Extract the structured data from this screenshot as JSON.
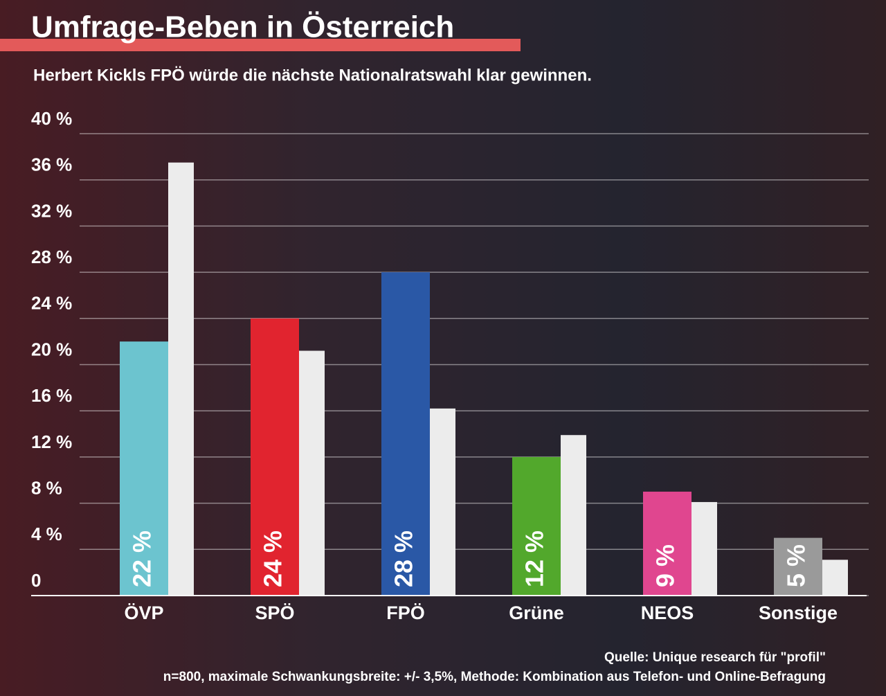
{
  "chart_data": {
    "type": "bar",
    "title": "Umfrage-Beben in Österreich",
    "subtitle": "Herbert Kickls FPÖ würde die nächste Nationalratswahl klar gewinnen.",
    "categories": [
      "ÖVP",
      "SPÖ",
      "FPÖ",
      "Grüne",
      "NEOS",
      "Sonstige"
    ],
    "series": [
      {
        "colors": [
          "#6cc4cf",
          "#e1242f",
          "#2a58a6",
          "#52a82c",
          "#e0468f",
          "#9a9a9a"
        ],
        "values": [
          22,
          24,
          28,
          12,
          9,
          5
        ],
        "value_labels": [
          "22 %",
          "24 %",
          "28 %",
          "12 %",
          "9 %",
          "5 %"
        ]
      },
      {
        "color": "#ececec",
        "values": [
          37.5,
          21.2,
          16.2,
          13.9,
          8.1,
          3.1
        ]
      }
    ],
    "ylim": [
      0,
      40
    ],
    "yticks": [
      0,
      {
        "value": 4,
        "label": "4 %"
      },
      {
        "value": 8,
        "label": "8 %"
      },
      {
        "value": 12,
        "label": "12 %"
      },
      {
        "value": 16,
        "label": "16 %"
      },
      {
        "value": 20,
        "label": "20 %"
      },
      {
        "value": 24,
        "label": "24 %"
      },
      {
        "value": 28,
        "label": "28 %"
      },
      {
        "value": 32,
        "label": "32 %"
      },
      {
        "value": 36,
        "label": "36 %"
      },
      {
        "value": 40,
        "label": "40 %"
      }
    ],
    "grid": true,
    "source": "Quelle: Unique research für \"profil\"",
    "note": "n=800, maximale Schwankungsbreite: +/- 3,5%, Methode: Kombination aus Telefon- und Online-Befragung"
  }
}
